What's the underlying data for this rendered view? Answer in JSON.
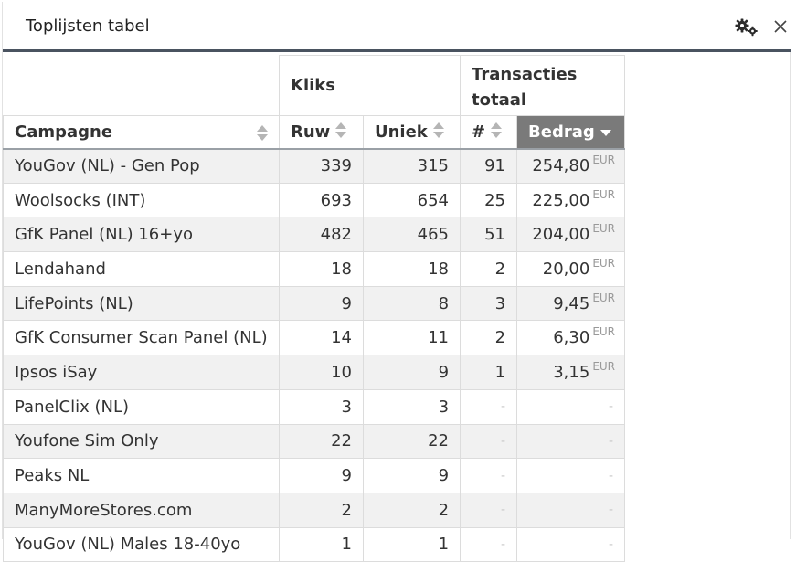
{
  "widget": {
    "title": "Toplijsten tabel",
    "icons": {
      "settings": "gears-icon",
      "close": "close-icon"
    }
  },
  "table": {
    "group_headers": {
      "kliks": "Kliks",
      "transacties": "Transacties totaal"
    },
    "columns": {
      "campagne": "Campagne",
      "ruw": "Ruw",
      "uniek": "Uniek",
      "count": "#",
      "bedrag": "Bedrag"
    },
    "sorted_column": "bedrag",
    "sorted_direction": "desc",
    "currency": "EUR",
    "empty": "-",
    "rows": [
      {
        "campagne": "YouGov (NL) - Gen Pop",
        "ruw": "339",
        "uniek": "315",
        "count": "91",
        "bedrag": "254,80"
      },
      {
        "campagne": "Woolsocks (INT)",
        "ruw": "693",
        "uniek": "654",
        "count": "25",
        "bedrag": "225,00"
      },
      {
        "campagne": "GfK Panel (NL) 16+yo",
        "ruw": "482",
        "uniek": "465",
        "count": "51",
        "bedrag": "204,00"
      },
      {
        "campagne": "Lendahand",
        "ruw": "18",
        "uniek": "18",
        "count": "2",
        "bedrag": "20,00"
      },
      {
        "campagne": "LifePoints (NL)",
        "ruw": "9",
        "uniek": "8",
        "count": "3",
        "bedrag": "9,45"
      },
      {
        "campagne": "GfK Consumer Scan Panel (NL)",
        "ruw": "14",
        "uniek": "11",
        "count": "2",
        "bedrag": "6,30"
      },
      {
        "campagne": "Ipsos iSay",
        "ruw": "10",
        "uniek": "9",
        "count": "1",
        "bedrag": "3,15"
      },
      {
        "campagne": "PanelClix (NL)",
        "ruw": "3",
        "uniek": "3",
        "count": "",
        "bedrag": ""
      },
      {
        "campagne": "Youfone Sim Only",
        "ruw": "22",
        "uniek": "22",
        "count": "",
        "bedrag": ""
      },
      {
        "campagne": "Peaks NL",
        "ruw": "9",
        "uniek": "9",
        "count": "",
        "bedrag": ""
      },
      {
        "campagne": "ManyMoreStores.com",
        "ruw": "2",
        "uniek": "2",
        "count": "",
        "bedrag": ""
      },
      {
        "campagne": "YouGov (NL) Males 18-40yo",
        "ruw": "1",
        "uniek": "1",
        "count": "",
        "bedrag": ""
      }
    ]
  }
}
